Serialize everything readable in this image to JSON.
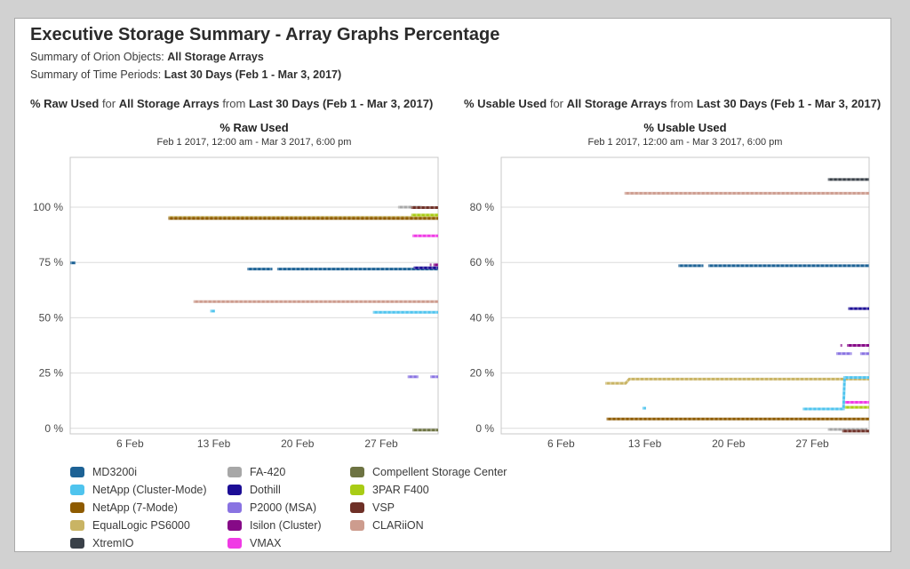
{
  "page": {
    "title": "Executive Storage Summary - Array Graphs Percentage",
    "orion_label": "Summary of Orion Objects:",
    "orion_value": "All Storage Arrays",
    "period_label": "Summary of Time Periods:",
    "period_value": "Last 30 Days (Feb 1 - Mar 3, 2017)"
  },
  "sections": [
    {
      "metric": "% Raw Used",
      "for_label": "for",
      "object": "All Storage Arrays",
      "from_label": "from",
      "period": "Last 30 Days (Feb 1 - Mar 3, 2017)"
    },
    {
      "metric": "% Usable Used",
      "for_label": "for",
      "object": "All Storage Arrays",
      "from_label": "from",
      "period": "Last 30 Days (Feb 1 - Mar 3, 2017)"
    }
  ],
  "chart_data": [
    {
      "type": "line",
      "title": "% Raw Used",
      "subtitle": "Feb 1 2017, 12:00 am - Mar 3 2017, 6:00 pm",
      "x_axis": {
        "unit": "days since Feb 1 2017 12:00 am",
        "start_label": "Feb 1 2017, 12:00 am",
        "end_label": "Mar 3 2017, 6:00 pm"
      },
      "x_domain": [
        0,
        30.75
      ],
      "y_domain": [
        -2.5,
        122.5
      ],
      "y_ticks": [
        0,
        25,
        50,
        75,
        100
      ],
      "y_tick_suffix": " %",
      "x_ticks": [
        {
          "day": 5,
          "label": "6 Feb"
        },
        {
          "day": 12,
          "label": "13 Feb"
        },
        {
          "day": 19,
          "label": "20 Feb"
        },
        {
          "day": 26,
          "label": "27 Feb"
        }
      ],
      "grid": true,
      "series": [
        {
          "name": "EqualLogic PS6000",
          "color": "#c9b464",
          "segments": [
            [
              [
                8.2,
                95.4
              ],
              [
                30.75,
                95.4
              ]
            ]
          ]
        },
        {
          "name": "NetApp (7-Mode)",
          "color": "#8e5b00",
          "segments": [
            [
              [
                8.2,
                94.9
              ],
              [
                30.75,
                94.9
              ]
            ]
          ]
        },
        {
          "name": "3PAR F400",
          "color": "#a9cc15",
          "segments": [
            [
              [
                28.5,
                96.4
              ],
              [
                30.75,
                96.4
              ]
            ]
          ]
        },
        {
          "name": "FA-420",
          "color": "#a7a7a7",
          "segments": [
            [
              [
                27.4,
                100
              ],
              [
                29.4,
                100
              ]
            ]
          ]
        },
        {
          "name": "VSP",
          "color": "#6e3027",
          "segments": [
            [
              [
                28.5,
                99.8
              ],
              [
                30.75,
                99.8
              ]
            ]
          ]
        },
        {
          "name": "CLARiiON",
          "color": "#cd9c8e",
          "segments": [
            [
              [
                10.3,
                57.3
              ],
              [
                30.75,
                57.3
              ]
            ]
          ]
        },
        {
          "name": "MD3200i",
          "color": "#1d6295",
          "segments": [
            [
              [
                0,
                74.8
              ],
              [
                0.45,
                74.8
              ]
            ],
            [
              [
                14.8,
                72
              ],
              [
                16.9,
                72
              ]
            ],
            [
              [
                17.3,
                72
              ],
              [
                30.75,
                72
              ]
            ]
          ]
        },
        {
          "name": "Dothill",
          "color": "#1c0d96",
          "segments": [
            [
              [
                28.7,
                72.6
              ],
              [
                30.75,
                72.6
              ]
            ]
          ]
        },
        {
          "name": "Isilon (Cluster)",
          "color": "#860a87",
          "segments": [
            [
              [
                30.05,
                73.9
              ],
              [
                30.2,
                73.9
              ]
            ],
            [
              [
                30.35,
                73.9
              ],
              [
                30.75,
                73.9
              ]
            ]
          ]
        },
        {
          "name": "NetApp (Cluster-Mode)",
          "color": "#4fc4ee",
          "segments": [
            [
              [
                11.7,
                53
              ],
              [
                12.1,
                53
              ]
            ],
            [
              [
                25.3,
                52.5
              ],
              [
                30.75,
                52.5
              ]
            ]
          ]
        },
        {
          "name": "VMAX",
          "color": "#f03be5",
          "segments": [
            [
              [
                28.6,
                87
              ],
              [
                30.75,
                87
              ]
            ]
          ]
        },
        {
          "name": "P2000 (MSA)",
          "color": "#8973e2",
          "segments": [
            [
              [
                28.2,
                23.3
              ],
              [
                29.1,
                23.3
              ]
            ],
            [
              [
                30.1,
                23.3
              ],
              [
                30.75,
                23.3
              ]
            ]
          ]
        },
        {
          "name": "Compellent Storage Center",
          "color": "#6d7342",
          "segments": [
            [
              [
                28.6,
                -0.8
              ],
              [
                30.75,
                -0.8
              ]
            ]
          ]
        }
      ]
    },
    {
      "type": "line",
      "title": "% Usable Used",
      "subtitle": "Feb 1 2017, 12:00 am - Mar 3 2017, 6:00 pm",
      "x_axis": {
        "unit": "days since Feb 1 2017 12:00 am",
        "start_label": "Feb 1 2017, 12:00 am",
        "end_label": "Mar 3 2017, 6:00 pm"
      },
      "x_domain": [
        0,
        30.75
      ],
      "y_domain": [
        -2,
        98
      ],
      "y_ticks": [
        0,
        20,
        40,
        60,
        80
      ],
      "y_tick_suffix": " %",
      "x_ticks": [
        {
          "day": 5,
          "label": "6 Feb"
        },
        {
          "day": 12,
          "label": "13 Feb"
        },
        {
          "day": 19,
          "label": "20 Feb"
        },
        {
          "day": 26,
          "label": "27 Feb"
        }
      ],
      "grid": true,
      "series": [
        {
          "name": "CLARiiON",
          "color": "#cd9c8e",
          "segments": [
            [
              [
                10.3,
                85
              ],
              [
                30.75,
                85
              ]
            ]
          ]
        },
        {
          "name": "XtremIO",
          "color": "#3a4149",
          "segments": [
            [
              [
                27.3,
                90
              ],
              [
                30.75,
                90
              ]
            ]
          ]
        },
        {
          "name": "MD3200i",
          "color": "#1d6295",
          "segments": [
            [
              [
                14.8,
                58.8
              ],
              [
                16.9,
                58.8
              ]
            ],
            [
              [
                17.3,
                58.8
              ],
              [
                30.75,
                58.8
              ]
            ]
          ]
        },
        {
          "name": "Dothill",
          "color": "#1c0d96",
          "segments": [
            [
              [
                29,
                43.3
              ],
              [
                30.75,
                43.3
              ]
            ]
          ]
        },
        {
          "name": "Isilon (Cluster)",
          "color": "#860a87",
          "segments": [
            [
              [
                28.35,
                30
              ],
              [
                28.5,
                30
              ]
            ],
            [
              [
                28.9,
                30
              ],
              [
                30.75,
                30
              ]
            ]
          ]
        },
        {
          "name": "P2000 (MSA)",
          "color": "#8973e2",
          "segments": [
            [
              [
                28,
                27
              ],
              [
                29.3,
                27
              ]
            ],
            [
              [
                30,
                27
              ],
              [
                30.75,
                27
              ]
            ]
          ]
        },
        {
          "name": "EqualLogic PS6000",
          "color": "#c9b464",
          "segments": [
            [
              [
                8.7,
                16.3
              ],
              [
                10.4,
                16.3
              ],
              [
                10.7,
                17.8
              ],
              [
                30.75,
                17.8
              ]
            ]
          ]
        },
        {
          "name": "NetApp (7-Mode)",
          "color": "#8e5b00",
          "segments": [
            [
              [
                8.8,
                3.4
              ],
              [
                30.75,
                3.4
              ]
            ]
          ]
        },
        {
          "name": "FA-420",
          "color": "#a7a7a7",
          "segments": [
            [
              [
                27.3,
                -0.4
              ],
              [
                30.6,
                -0.4
              ]
            ]
          ]
        },
        {
          "name": "VSP",
          "color": "#6e3027",
          "segments": [
            [
              [
                28.5,
                -1
              ],
              [
                30.75,
                -1
              ]
            ]
          ]
        },
        {
          "name": "3PAR F400",
          "color": "#a9cc15",
          "segments": [
            [
              [
                28.7,
                7.6
              ],
              [
                30.75,
                7.6
              ]
            ]
          ]
        },
        {
          "name": "VMAX",
          "color": "#f03be5",
          "segments": [
            [
              [
                28.7,
                9.4
              ],
              [
                30.75,
                9.4
              ]
            ]
          ]
        },
        {
          "name": "NetApp (Cluster-Mode)",
          "color": "#4fc4ee",
          "segments": [
            [
              [
                11.8,
                7.3
              ],
              [
                12.1,
                7.3
              ]
            ],
            [
              [
                25.2,
                7
              ],
              [
                28.6,
                7
              ],
              [
                28.7,
                18.4
              ],
              [
                30.75,
                18.4
              ]
            ]
          ]
        }
      ]
    }
  ],
  "legend": {
    "columns": [
      [
        {
          "label": "MD3200i",
          "color": "#1d6295"
        },
        {
          "label": "NetApp (Cluster-Mode)",
          "color": "#4fc4ee"
        },
        {
          "label": "NetApp (7-Mode)",
          "color": "#8e5b00"
        },
        {
          "label": "EqualLogic PS6000",
          "color": "#c9b464"
        },
        {
          "label": "XtremIO",
          "color": "#3a4149"
        }
      ],
      [
        {
          "label": "FA-420",
          "color": "#a7a7a7"
        },
        {
          "label": "Dothill",
          "color": "#1c0d96"
        },
        {
          "label": "P2000 (MSA)",
          "color": "#8973e2"
        },
        {
          "label": "Isilon (Cluster)",
          "color": "#860a87"
        },
        {
          "label": "VMAX",
          "color": "#f03be5"
        }
      ],
      [
        {
          "label": "Compellent Storage Center",
          "color": "#6d7342"
        },
        {
          "label": "3PAR F400",
          "color": "#a9cc15"
        },
        {
          "label": "VSP",
          "color": "#6e3027"
        },
        {
          "label": "CLARiiON",
          "color": "#cd9c8e"
        }
      ]
    ]
  },
  "style": {
    "grid_color": "#dcdcdc",
    "plot_border_color": "#c9c9c9",
    "axis_label_color": "#4a4a4a"
  }
}
